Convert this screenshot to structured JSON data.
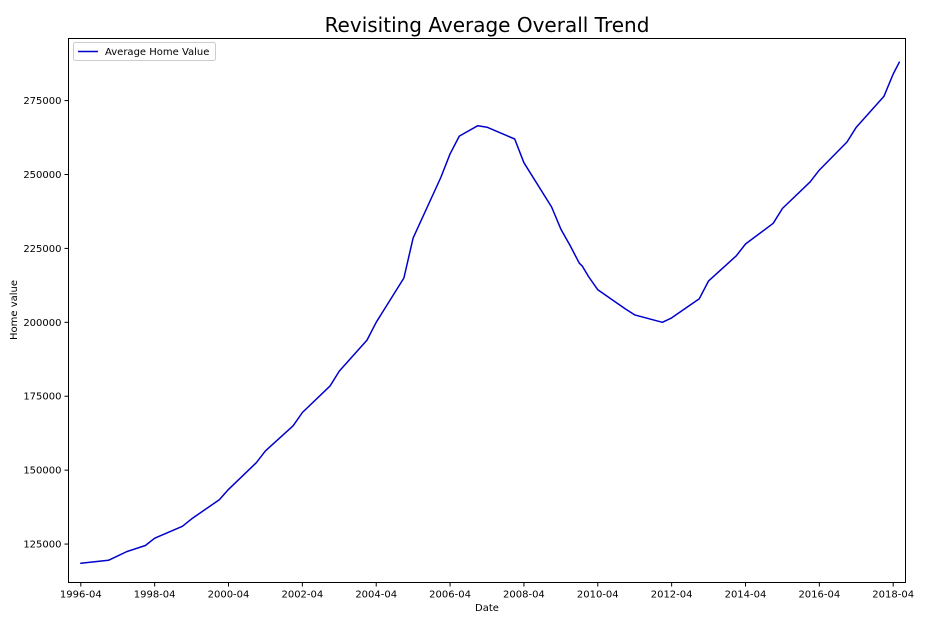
{
  "chart_data": {
    "type": "line",
    "title": "Revisiting Average Overall Trend",
    "xlabel": "Date",
    "ylabel": "Home value",
    "x_ticks": [
      "1996-04",
      "1998-04",
      "2000-04",
      "2002-04",
      "2004-04",
      "2006-04",
      "2008-04",
      "2010-04",
      "2012-04",
      "2014-04",
      "2016-04",
      "2018-04"
    ],
    "y_ticks": [
      125000,
      150000,
      175000,
      200000,
      225000,
      250000,
      275000
    ],
    "xlim": [
      "1995-12",
      "2018-08"
    ],
    "ylim": [
      112000,
      296000
    ],
    "grid": false,
    "legend": "upper-left",
    "series": [
      {
        "name": "Average Home Value",
        "color": "#0000cc",
        "x": [
          "1996-04",
          "1997-01",
          "1997-04",
          "1997-07",
          "1998-01",
          "1998-04",
          "1999-01",
          "1999-04",
          "2000-01",
          "2000-04",
          "2001-01",
          "2001-04",
          "2002-01",
          "2002-04",
          "2003-01",
          "2003-04",
          "2004-01",
          "2004-04",
          "2005-01",
          "2005-04",
          "2006-01",
          "2006-04",
          "2006-07",
          "2007-01",
          "2007-04",
          "2008-01",
          "2008-04",
          "2009-01",
          "2009-04",
          "2009-07",
          "2009-10",
          "2009-11",
          "2010-01",
          "2010-04",
          "2011-01",
          "2011-04",
          "2012-01",
          "2012-04",
          "2013-01",
          "2013-04",
          "2014-01",
          "2014-04",
          "2015-01",
          "2015-04",
          "2016-01",
          "2016-04",
          "2017-01",
          "2017-04",
          "2018-01",
          "2018-04",
          "2018-06"
        ],
        "values": [
          118500,
          119500,
          121000,
          122500,
          124500,
          127000,
          131000,
          133500,
          140000,
          143500,
          152500,
          156500,
          165000,
          169500,
          178500,
          183500,
          194000,
          200000,
          215000,
          228500,
          249000,
          257000,
          263000,
          266500,
          266000,
          262000,
          254000,
          239000,
          231500,
          226000,
          220000,
          219000,
          215500,
          211000,
          204500,
          202500,
          200000,
          201500,
          208000,
          214000,
          222500,
          226500,
          233500,
          238500,
          247500,
          251500,
          261000,
          266000,
          276500,
          284000,
          288000
        ]
      }
    ]
  }
}
